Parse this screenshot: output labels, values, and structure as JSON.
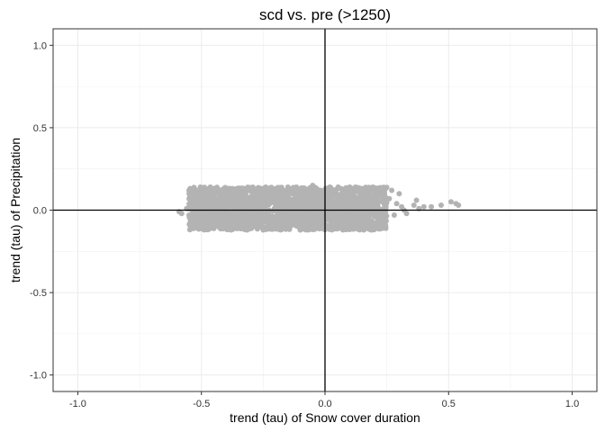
{
  "chart_data": {
    "type": "scatter",
    "title": "scd vs. pre (>1250)",
    "xlabel": "trend (tau) of Snow cover duration",
    "ylabel": "trend (tau) of Precipitation",
    "xlim": [
      -1.1,
      1.1
    ],
    "ylim": [
      -1.1,
      1.1
    ],
    "x_ticks": [
      -1.0,
      -0.5,
      0.0,
      0.5,
      1.0
    ],
    "x_tick_labels": [
      "-1.0",
      "-0.5",
      "0.0",
      "0.5",
      "1.0"
    ],
    "y_ticks": [
      -1.0,
      -0.5,
      0.0,
      0.5,
      1.0
    ],
    "y_tick_labels": [
      "-1.0",
      "-0.5",
      "0.0",
      "0.5",
      "1.0"
    ],
    "grid": true,
    "reference_lines": {
      "x": 0,
      "y": 0
    },
    "point_color": "#b3b3b3",
    "point_cloud": {
      "x_range": [
        -0.59,
        0.54
      ],
      "y_range": [
        -0.13,
        0.15
      ],
      "dense_core": {
        "x": [
          -0.55,
          0.25
        ],
        "y": [
          -0.12,
          0.14
        ]
      }
    },
    "points": [
      {
        "x": -0.59,
        "y": -0.01
      },
      {
        "x": -0.58,
        "y": -0.02
      },
      {
        "x": -0.56,
        "y": 0.01
      },
      {
        "x": -0.55,
        "y": -0.03
      },
      {
        "x": -0.54,
        "y": 0.02
      },
      {
        "x": -0.52,
        "y": -0.04
      },
      {
        "x": -0.51,
        "y": 0.05
      },
      {
        "x": -0.5,
        "y": -0.05
      },
      {
        "x": -0.49,
        "y": 0.07
      },
      {
        "x": -0.48,
        "y": 0.08
      },
      {
        "x": -0.46,
        "y": -0.06
      },
      {
        "x": -0.45,
        "y": 0.09
      },
      {
        "x": -0.38,
        "y": -0.12
      },
      {
        "x": -0.35,
        "y": 0.11
      },
      {
        "x": -0.3,
        "y": 0.12
      },
      {
        "x": -0.25,
        "y": -0.12
      },
      {
        "x": -0.24,
        "y": 0.14
      },
      {
        "x": -0.2,
        "y": 0.13
      },
      {
        "x": -0.15,
        "y": 0.14
      },
      {
        "x": -0.1,
        "y": -0.12
      },
      {
        "x": -0.05,
        "y": 0.15
      },
      {
        "x": 0.02,
        "y": 0.14
      },
      {
        "x": 0.05,
        "y": -0.11
      },
      {
        "x": 0.1,
        "y": 0.14
      },
      {
        "x": 0.15,
        "y": 0.13
      },
      {
        "x": 0.2,
        "y": 0.12
      },
      {
        "x": 0.22,
        "y": -0.06
      },
      {
        "x": 0.24,
        "y": 0.1
      },
      {
        "x": 0.26,
        "y": 0.07
      },
      {
        "x": 0.27,
        "y": 0.12
      },
      {
        "x": 0.28,
        "y": -0.03
      },
      {
        "x": 0.29,
        "y": 0.04
      },
      {
        "x": 0.3,
        "y": 0.1
      },
      {
        "x": 0.31,
        "y": 0.02
      },
      {
        "x": 0.32,
        "y": 0.0
      },
      {
        "x": 0.33,
        "y": -0.02
      },
      {
        "x": 0.36,
        "y": 0.03
      },
      {
        "x": 0.37,
        "y": 0.06
      },
      {
        "x": 0.38,
        "y": 0.01
      },
      {
        "x": 0.4,
        "y": 0.02
      },
      {
        "x": 0.43,
        "y": 0.02
      },
      {
        "x": 0.47,
        "y": 0.03
      },
      {
        "x": 0.51,
        "y": 0.05
      },
      {
        "x": 0.53,
        "y": 0.04
      },
      {
        "x": 0.54,
        "y": 0.03
      }
    ]
  }
}
